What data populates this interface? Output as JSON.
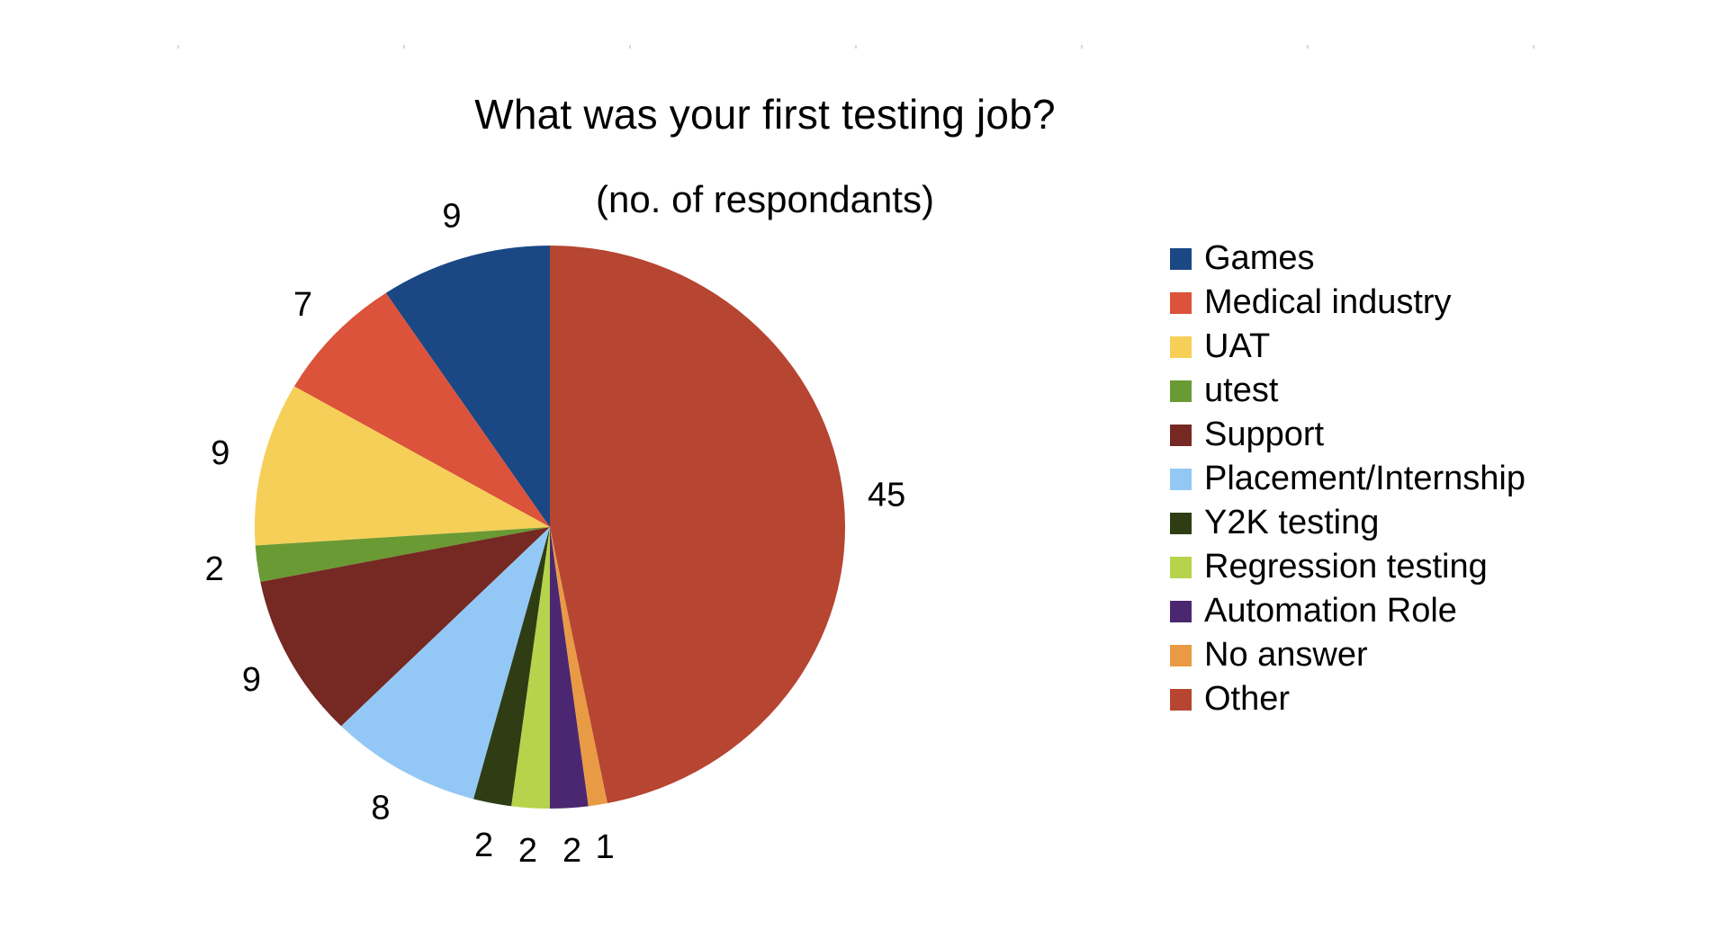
{
  "chart_data": {
    "type": "pie",
    "title": "What was your first testing job?",
    "subtitle": "(no. of respondants)",
    "legend_position": "right",
    "start_angle_deg": 0,
    "direction": "counterclockwise",
    "slices": [
      {
        "label": "Games",
        "value": 9,
        "color": "#1b4785"
      },
      {
        "label": "Medical industry",
        "value": 7,
        "color": "#db533a"
      },
      {
        "label": "UAT",
        "value": 9,
        "color": "#f5cf58"
      },
      {
        "label": "utest",
        "value": 2,
        "color": "#6a9a33"
      },
      {
        "label": "Support",
        "value": 9,
        "color": "#762823"
      },
      {
        "label": "Placement/Internship",
        "value": 8,
        "color": "#93c8f6"
      },
      {
        "label": "Y2K testing",
        "value": 2,
        "color": "#2f3d14"
      },
      {
        "label": "Regression testing",
        "value": 2,
        "color": "#b5d34b"
      },
      {
        "label": "Automation Role",
        "value": 2,
        "color": "#4c2771"
      },
      {
        "label": "No answer",
        "value": 1,
        "color": "#e99a45"
      },
      {
        "label": "Other",
        "value": 45,
        "color": "#b64532"
      }
    ]
  }
}
